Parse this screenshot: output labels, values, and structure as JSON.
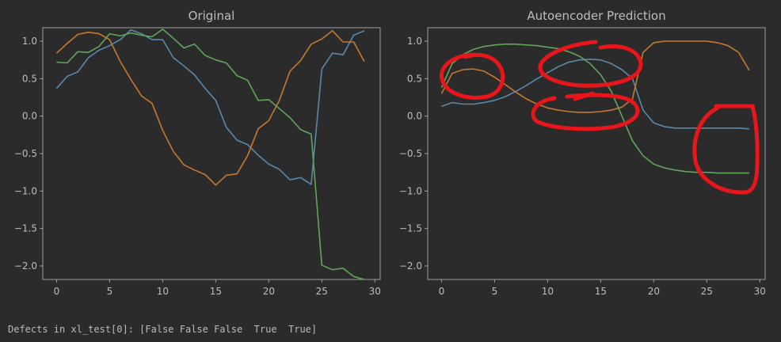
{
  "console": {
    "output": "Defects in xl_test[0]: [False False False  True  True]"
  },
  "colors": {
    "background": "#2b2b2b",
    "axes": "#9e9e9e",
    "text": "#bdbdbd",
    "series": [
      "#5a88ad",
      "#c4792f",
      "#62a55a"
    ],
    "annotation": "#e8161b"
  },
  "chart_data": [
    {
      "type": "line",
      "title": "Original",
      "xlim": [
        -1.3,
        30.5
      ],
      "ylim": [
        -2.18,
        1.18
      ],
      "xticks": [
        0,
        5,
        10,
        15,
        20,
        25,
        30
      ],
      "yticks": [
        -2.0,
        -1.5,
        -1.0,
        -0.5,
        0.0,
        0.5,
        1.0
      ],
      "xtick_labels": [
        "0",
        "5",
        "10",
        "15",
        "20",
        "25",
        "30"
      ],
      "ytick_labels": [
        "−2.0",
        "−1.5",
        "−1.0",
        "−0.5",
        "0.0",
        "0.5",
        "1.0"
      ],
      "grid": false,
      "x": [
        0,
        1,
        2,
        3,
        4,
        5,
        6,
        7,
        8,
        9,
        10,
        11,
        12,
        13,
        14,
        15,
        16,
        17,
        18,
        19,
        20,
        21,
        22,
        23,
        24,
        25,
        26,
        27,
        28,
        29
      ],
      "series": [
        {
          "values": [
            0.37,
            0.53,
            0.59,
            0.78,
            0.88,
            0.94,
            1.02,
            1.15,
            1.1,
            1.02,
            1.02,
            0.78,
            0.67,
            0.55,
            0.37,
            0.21,
            -0.15,
            -0.32,
            -0.38,
            -0.52,
            -0.64,
            -0.71,
            -0.85,
            -0.82,
            -0.91,
            0.63,
            0.84,
            0.82,
            1.08,
            1.14
          ]
        },
        {
          "values": [
            0.84,
            0.97,
            1.09,
            1.12,
            1.1,
            1.02,
            0.73,
            0.49,
            0.27,
            0.17,
            -0.19,
            -0.47,
            -0.65,
            -0.72,
            -0.78,
            -0.92,
            -0.79,
            -0.77,
            -0.53,
            -0.17,
            -0.06,
            0.21,
            0.6,
            0.74,
            0.96,
            1.03,
            1.14,
            0.99,
            0.99,
            0.73
          ]
        },
        {
          "values": [
            0.72,
            0.71,
            0.86,
            0.85,
            0.93,
            1.1,
            1.07,
            1.11,
            1.08,
            1.06,
            1.16,
            1.04,
            0.91,
            0.96,
            0.81,
            0.75,
            0.71,
            0.54,
            0.48,
            0.21,
            0.22,
            0.1,
            -0.02,
            -0.18,
            -0.24,
            -1.99,
            -2.05,
            -2.03,
            -2.14,
            -2.18
          ]
        }
      ]
    },
    {
      "type": "line",
      "title": "Autoencoder Prediction",
      "xlim": [
        -1.3,
        30.5
      ],
      "ylim": [
        -2.18,
        1.18
      ],
      "xticks": [
        0,
        5,
        10,
        15,
        20,
        25,
        30
      ],
      "yticks": [
        -2.0,
        -1.5,
        -1.0,
        -0.5,
        0.0,
        0.5,
        1.0
      ],
      "xtick_labels": [
        "0",
        "5",
        "10",
        "15",
        "20",
        "25",
        "30"
      ],
      "ytick_labels": [
        "−2.0",
        "−1.5",
        "−1.0",
        "−0.5",
        "0.0",
        "0.5",
        "1.0"
      ],
      "grid": false,
      "x": [
        0,
        1,
        2,
        3,
        4,
        5,
        6,
        7,
        8,
        9,
        10,
        11,
        12,
        13,
        14,
        15,
        16,
        17,
        18,
        19,
        20,
        21,
        22,
        23,
        24,
        25,
        26,
        27,
        28,
        29
      ],
      "series": [
        {
          "values": [
            0.13,
            0.18,
            0.16,
            0.16,
            0.18,
            0.21,
            0.26,
            0.33,
            0.41,
            0.5,
            0.58,
            0.66,
            0.72,
            0.75,
            0.76,
            0.75,
            0.7,
            0.62,
            0.5,
            0.08,
            -0.09,
            -0.14,
            -0.16,
            -0.16,
            -0.16,
            -0.16,
            -0.16,
            -0.16,
            -0.16,
            -0.17
          ]
        },
        {
          "values": [
            0.3,
            0.57,
            0.62,
            0.63,
            0.6,
            0.52,
            0.42,
            0.32,
            0.23,
            0.16,
            0.11,
            0.08,
            0.06,
            0.05,
            0.05,
            0.06,
            0.08,
            0.12,
            0.23,
            0.85,
            0.98,
            1.0,
            1.0,
            1.0,
            1.0,
            1.0,
            0.98,
            0.94,
            0.85,
            0.61
          ]
        },
        {
          "values": [
            0.38,
            0.7,
            0.82,
            0.89,
            0.93,
            0.95,
            0.96,
            0.96,
            0.95,
            0.94,
            0.92,
            0.9,
            0.86,
            0.8,
            0.7,
            0.55,
            0.33,
            0.0,
            -0.33,
            -0.53,
            -0.64,
            -0.69,
            -0.72,
            -0.74,
            -0.75,
            -0.75,
            -0.76,
            -0.76,
            -0.76,
            -0.76
          ]
        }
      ]
    }
  ]
}
